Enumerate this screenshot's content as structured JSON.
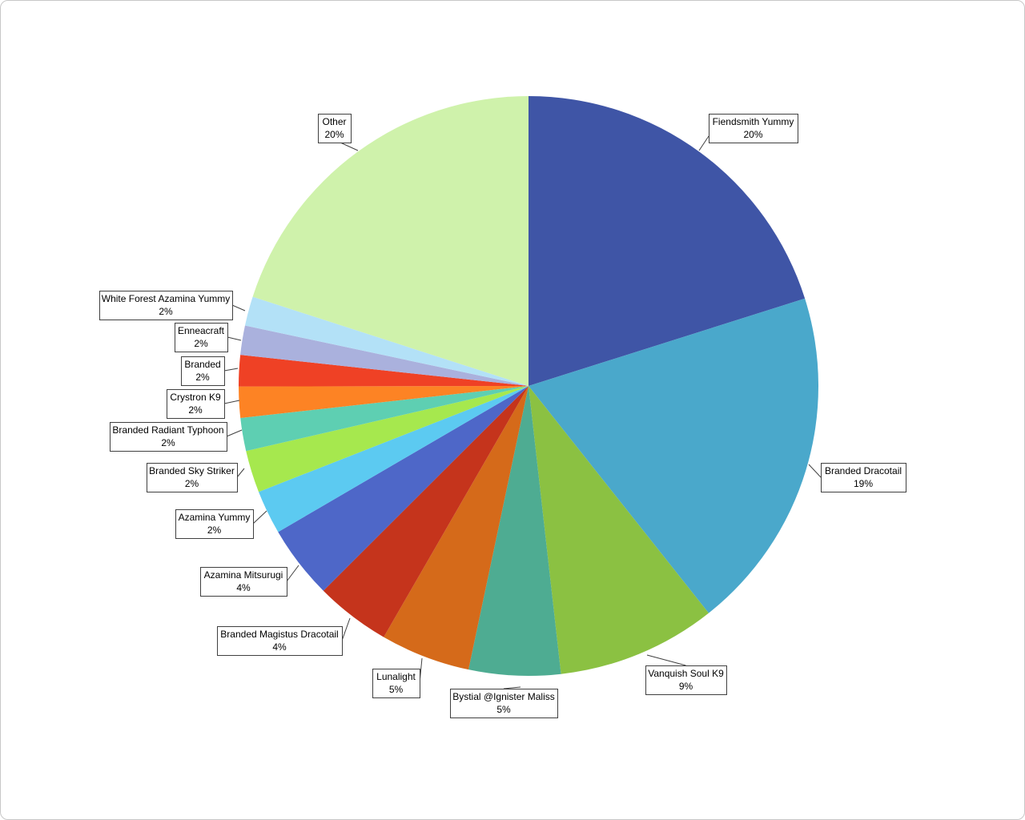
{
  "chart_data": {
    "type": "pie",
    "title": "",
    "slices": [
      {
        "name": "Fiendsmith Yummy",
        "label": "20%",
        "value": 19.7,
        "color": "#3f55a6"
      },
      {
        "name": "Branded Dracotail",
        "label": "19%",
        "value": 18.8,
        "color": "#4aa8cb"
      },
      {
        "name": "Vanquish Soul K9",
        "label": "9%",
        "value": 8.7,
        "color": "#8bc142"
      },
      {
        "name": "Bystial @Ignister Maliss",
        "label": "5%",
        "value": 5.0,
        "color": "#4eac92"
      },
      {
        "name": "Lunalight",
        "label": "5%",
        "value": 4.9,
        "color": "#d56a1a"
      },
      {
        "name": "Branded Magistus Dracotail",
        "label": "4%",
        "value": 4.1,
        "color": "#c5341c"
      },
      {
        "name": "Azamina Mitsurugi",
        "label": "4%",
        "value": 4.0,
        "color": "#4e67c8"
      },
      {
        "name": "Azamina Yummy",
        "label": "2%",
        "value": 2.4,
        "color": "#5ccaf1"
      },
      {
        "name": "Branded Sky Striker",
        "label": "2%",
        "value": 2.3,
        "color": "#a6e84e"
      },
      {
        "name": "Branded Radiant Typhoon",
        "label": "2%",
        "value": 1.8,
        "color": "#5ecfb2"
      },
      {
        "name": "Crystron K9",
        "label": "2%",
        "value": 1.7,
        "color": "#fd8324"
      },
      {
        "name": "Branded",
        "label": "2%",
        "value": 1.7,
        "color": "#ef4125"
      },
      {
        "name": "Enneacraft",
        "label": "2%",
        "value": 1.6,
        "color": "#aab1dd"
      },
      {
        "name": "White Forest Azamina Yummy",
        "label": "2%",
        "value": 1.6,
        "color": "#b3e1f7"
      },
      {
        "name": "Other",
        "label": "20%",
        "value": 19.6,
        "color": "#cff2ab"
      }
    ],
    "start_angle_deg": 0,
    "direction": "clockwise",
    "legend": "none",
    "data_labels": "callouts"
  }
}
